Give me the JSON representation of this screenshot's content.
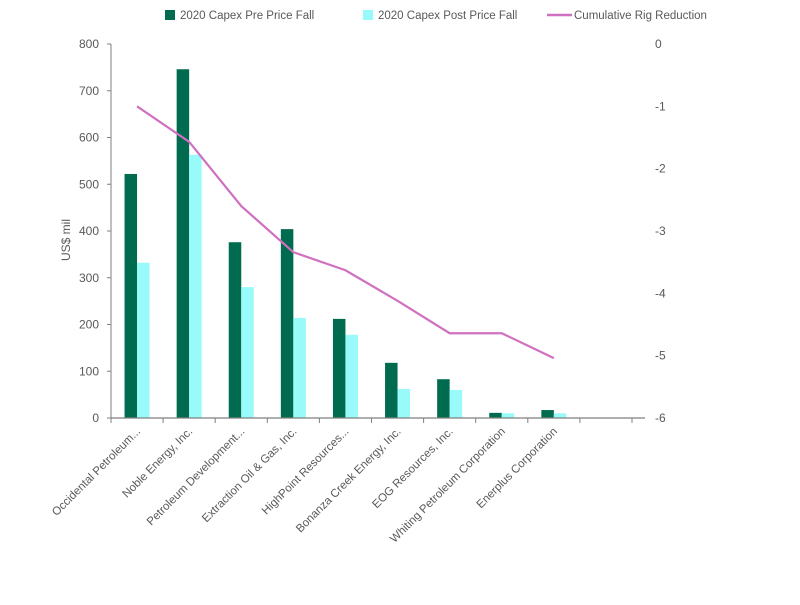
{
  "chart_data": {
    "type": "bar+line",
    "title": "",
    "xlabel": "",
    "ylabel": "US$ mil",
    "ylim": [
      0,
      800
    ],
    "y_ticks": [
      "0",
      "100",
      "200",
      "300",
      "400",
      "500",
      "600",
      "700",
      "800"
    ],
    "y2lim": [
      -6,
      0
    ],
    "y2_ticks": [
      "0",
      "-1",
      "-2",
      "-3",
      "-4",
      "-5",
      "-6"
    ],
    "legend_position": "top",
    "categories": [
      "Occidental Petroleum...",
      "Noble Energy, Inc.",
      "Petroleum Development...",
      "Extraction Oil & Gas, Inc.",
      "HighPoint Resources...",
      "Bonanza Creek Energy, Inc.",
      "EOG Resources, Inc.",
      "Whiting Petroleum Corporation",
      "Enerplus Corporation",
      ""
    ],
    "series": [
      {
        "name": "2020 Capex Pre Price Fall",
        "type": "bar",
        "axis": "left",
        "color": "#006B4F",
        "values": [
          522,
          746,
          376,
          404,
          212,
          118,
          83,
          11,
          17,
          null
        ]
      },
      {
        "name": "2020 Capex Post Price Fall",
        "type": "bar",
        "axis": "left",
        "color": "#99FAFA",
        "values": [
          332,
          563,
          280,
          214,
          178,
          62,
          60,
          10,
          10,
          null
        ]
      },
      {
        "name": "Cumulative Rig Reduction",
        "type": "line",
        "axis": "right",
        "color": "#D070C0",
        "values": [
          -1.0,
          -1.57,
          -2.6,
          -3.34,
          -3.63,
          -4.12,
          -4.64,
          -4.64,
          -5.04,
          null
        ]
      }
    ]
  }
}
